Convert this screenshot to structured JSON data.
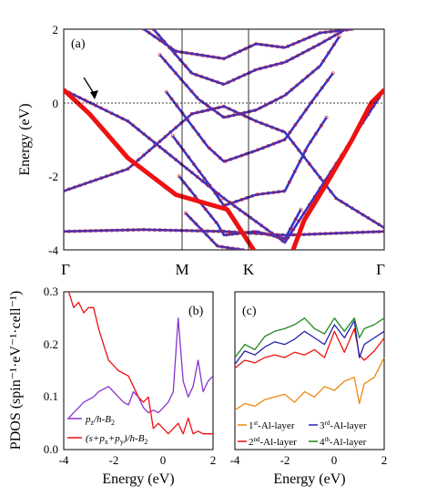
{
  "chart_data": [
    {
      "type": "scatter",
      "panel_label": "(a)",
      "ylabel": "Energy (eV)",
      "ylim": [
        -4,
        2
      ],
      "yticks": [
        "-4",
        "-2",
        "0",
        "2"
      ],
      "kpoints": [
        "Γ",
        "M",
        "K",
        "Γ"
      ],
      "fermi_level": 0,
      "grid": false,
      "colors": {
        "bands": "#3333cc",
        "markers": "#cc2222",
        "highlight": "#ee1111"
      },
      "highlight_band": {
        "name": "red band",
        "x": [
          0.0,
          0.08,
          0.2,
          0.35,
          0.45,
          0.51,
          0.6,
          0.69,
          0.75,
          0.82,
          0.9,
          0.96,
          1.0
        ],
        "y": [
          0.35,
          -0.3,
          -1.5,
          -2.5,
          -2.75,
          -2.9,
          -4.1,
          -4.6,
          -3.2,
          -2.2,
          -1.0,
          0.0,
          0.35
        ]
      },
      "bands": [
        {
          "x": [
            0.0,
            0.2,
            0.5,
            0.69,
            1.0
          ],
          "y": [
            0.35,
            -0.5,
            -2.6,
            -3.8,
            0.35
          ]
        },
        {
          "x": [
            0.0,
            0.25,
            0.5,
            0.69,
            1.0
          ],
          "y": [
            -3.5,
            -3.45,
            -3.5,
            -3.6,
            -3.5
          ]
        },
        {
          "x": [
            0.0,
            0.2,
            0.4,
            0.5,
            0.6,
            0.69,
            0.85,
            1.0
          ],
          "y": [
            -2.4,
            -1.8,
            -0.3,
            -0.1,
            -0.5,
            -0.8,
            -2.6,
            -3.4
          ]
        },
        {
          "x": [
            0.25,
            0.35,
            0.5,
            0.6,
            0.69,
            0.8,
            0.9
          ],
          "y": [
            2.0,
            1.4,
            1.2,
            1.6,
            1.5,
            1.9,
            2.0
          ]
        },
        {
          "x": [
            0.28,
            0.4,
            0.5,
            0.6,
            0.69,
            0.8,
            0.88
          ],
          "y": [
            2.0,
            0.8,
            0.5,
            0.9,
            1.1,
            1.6,
            2.0
          ]
        },
        {
          "x": [
            0.3,
            0.42,
            0.5,
            0.6,
            0.69,
            0.8,
            0.86
          ],
          "y": [
            1.3,
            0.1,
            -0.4,
            -0.2,
            0.2,
            1.0,
            1.8
          ]
        },
        {
          "x": [
            0.32,
            0.45,
            0.5,
            0.6,
            0.69,
            0.78,
            0.84
          ],
          "y": [
            0.3,
            -1.2,
            -1.6,
            -1.3,
            -1.0,
            0.1,
            0.8
          ]
        },
        {
          "x": [
            0.34,
            0.46,
            0.5,
            0.6,
            0.69,
            0.76,
            0.82
          ],
          "y": [
            -0.9,
            -2.3,
            -2.8,
            -2.5,
            -2.4,
            -1.2,
            -0.4
          ]
        },
        {
          "x": [
            0.36,
            0.48,
            0.5,
            0.6,
            0.69,
            0.74
          ],
          "y": [
            -2.0,
            -3.3,
            -3.6,
            -3.5,
            -3.7,
            -2.9
          ]
        },
        {
          "x": [
            0.38,
            0.48,
            0.56
          ],
          "y": [
            -3.0,
            -3.9,
            -4.0
          ]
        }
      ]
    },
    {
      "type": "line",
      "panel_label": "(b)",
      "xlabel": "Energy (eV)",
      "ylabel": "PDOS (spin⁻¹·eV⁻¹·cell⁻¹)",
      "xlim": [
        -4,
        2
      ],
      "ylim": [
        0.0,
        0.3
      ],
      "xticks": [
        "-4",
        "-2",
        "0",
        "2"
      ],
      "yticks": [
        "0.0",
        "0.1",
        "0.2",
        "0.3"
      ],
      "legend_position": "bottom-left",
      "series": [
        {
          "name": "p_z/h-B_2",
          "legend_main": "p",
          "legend_sub1": "z",
          "legend_mid": "/h-B",
          "legend_sub2": "2",
          "color": "#8833cc",
          "x": [
            -3.8,
            -3.6,
            -3.4,
            -3.2,
            -3.0,
            -2.8,
            -2.6,
            -2.4,
            -2.2,
            -2.0,
            -1.8,
            -1.6,
            -1.4,
            -1.2,
            -1.0,
            -0.8,
            -0.6,
            -0.4,
            -0.2,
            0.0,
            0.2,
            0.4,
            0.6,
            0.8,
            1.0,
            1.2,
            1.4,
            1.6,
            1.8,
            2.0
          ],
          "y": [
            0.06,
            0.07,
            0.08,
            0.09,
            0.095,
            0.1,
            0.11,
            0.115,
            0.12,
            0.11,
            0.1,
            0.09,
            0.085,
            0.11,
            0.1,
            0.08,
            0.07,
            0.075,
            0.07,
            0.08,
            0.09,
            0.11,
            0.25,
            0.13,
            0.1,
            0.12,
            0.17,
            0.11,
            0.13,
            0.14
          ]
        },
        {
          "name": "(s+p_x+p_y)/h-B_2",
          "legend_main": "(s+p",
          "legend_sub1": "x",
          "legend_mid": "+p",
          "legend_sub2": "y",
          "legend_tail": ")/h-B",
          "legend_sub3": "2",
          "color": "#ee1111",
          "x": [
            -3.8,
            -3.6,
            -3.4,
            -3.2,
            -3.0,
            -2.8,
            -2.6,
            -2.4,
            -2.2,
            -2.0,
            -1.8,
            -1.6,
            -1.4,
            -1.2,
            -1.0,
            -0.8,
            -0.6,
            -0.4,
            -0.2,
            0.0,
            0.2,
            0.4,
            0.6,
            0.8,
            1.0,
            1.2,
            1.4,
            1.6,
            1.8,
            2.0
          ],
          "y": [
            0.3,
            0.27,
            0.28,
            0.26,
            0.27,
            0.27,
            0.23,
            0.2,
            0.17,
            0.16,
            0.15,
            0.145,
            0.14,
            0.12,
            0.1,
            0.09,
            0.1,
            0.04,
            0.05,
            0.04,
            0.03,
            0.04,
            0.05,
            0.03,
            0.06,
            0.03,
            0.035,
            0.03,
            0.03,
            0.03
          ]
        }
      ]
    },
    {
      "type": "line",
      "panel_label": "(c)",
      "xlabel": "Energy (eV)",
      "xlim": [
        -4,
        2
      ],
      "xticks": [
        "-4",
        "-2",
        "0",
        "2"
      ],
      "legend_position": "bottom",
      "series": [
        {
          "name": "1st-Al-layer",
          "legend_pre": "1",
          "legend_sup": "st",
          "legend_post": "-Al-layer",
          "color": "#ee8811",
          "x": [
            -4.0,
            -3.6,
            -3.2,
            -2.8,
            -2.4,
            -2.0,
            -1.6,
            -1.2,
            -0.8,
            -0.4,
            0.0,
            0.4,
            0.8,
            1.0,
            1.2,
            1.6,
            2.0
          ],
          "y": [
            0.3,
            0.35,
            0.33,
            0.38,
            0.4,
            0.42,
            0.36,
            0.44,
            0.4,
            0.48,
            0.45,
            0.52,
            0.55,
            0.35,
            0.5,
            0.55,
            0.7
          ]
        },
        {
          "name": "2nd-Al-layer",
          "legend_pre": "2",
          "legend_sup": "nd",
          "legend_post": "-Al-layer",
          "color": "#ee1111",
          "x": [
            -4.0,
            -3.6,
            -3.2,
            -2.8,
            -2.4,
            -2.0,
            -1.6,
            -1.2,
            -0.8,
            -0.4,
            0.0,
            0.4,
            0.8,
            1.0,
            1.2,
            1.6,
            2.0
          ],
          "y": [
            0.62,
            0.68,
            0.66,
            0.7,
            0.72,
            0.7,
            0.74,
            0.72,
            0.76,
            0.7,
            0.9,
            0.74,
            0.92,
            0.72,
            0.68,
            0.75,
            0.85
          ]
        },
        {
          "name": "3rd-Al-layer",
          "legend_pre": "3",
          "legend_sup": "rd",
          "legend_post": "-Al-layer",
          "color": "#2222aa",
          "x": [
            -4.0,
            -3.6,
            -3.2,
            -2.8,
            -2.4,
            -2.0,
            -1.6,
            -1.2,
            -0.8,
            -0.4,
            0.0,
            0.4,
            0.8,
            1.0,
            1.2,
            1.6,
            2.0
          ],
          "y": [
            0.65,
            0.75,
            0.72,
            0.78,
            0.82,
            0.8,
            0.84,
            0.9,
            0.85,
            0.8,
            0.95,
            0.85,
            0.98,
            0.7,
            0.8,
            0.85,
            0.9
          ]
        },
        {
          "name": "4th-Al-layer",
          "legend_pre": "4",
          "legend_sup": "th",
          "legend_post": "-Al-layer",
          "color": "#228822",
          "x": [
            -4.0,
            -3.6,
            -3.2,
            -2.8,
            -2.4,
            -2.0,
            -1.6,
            -1.2,
            -0.8,
            -0.4,
            0.0,
            0.4,
            0.8,
            1.0,
            1.2,
            1.6,
            2.0
          ],
          "y": [
            0.7,
            0.8,
            0.76,
            0.86,
            0.9,
            0.92,
            0.95,
            1.0,
            0.92,
            0.88,
            1.0,
            0.9,
            1.0,
            0.85,
            0.92,
            0.95,
            1.0
          ]
        }
      ]
    }
  ]
}
